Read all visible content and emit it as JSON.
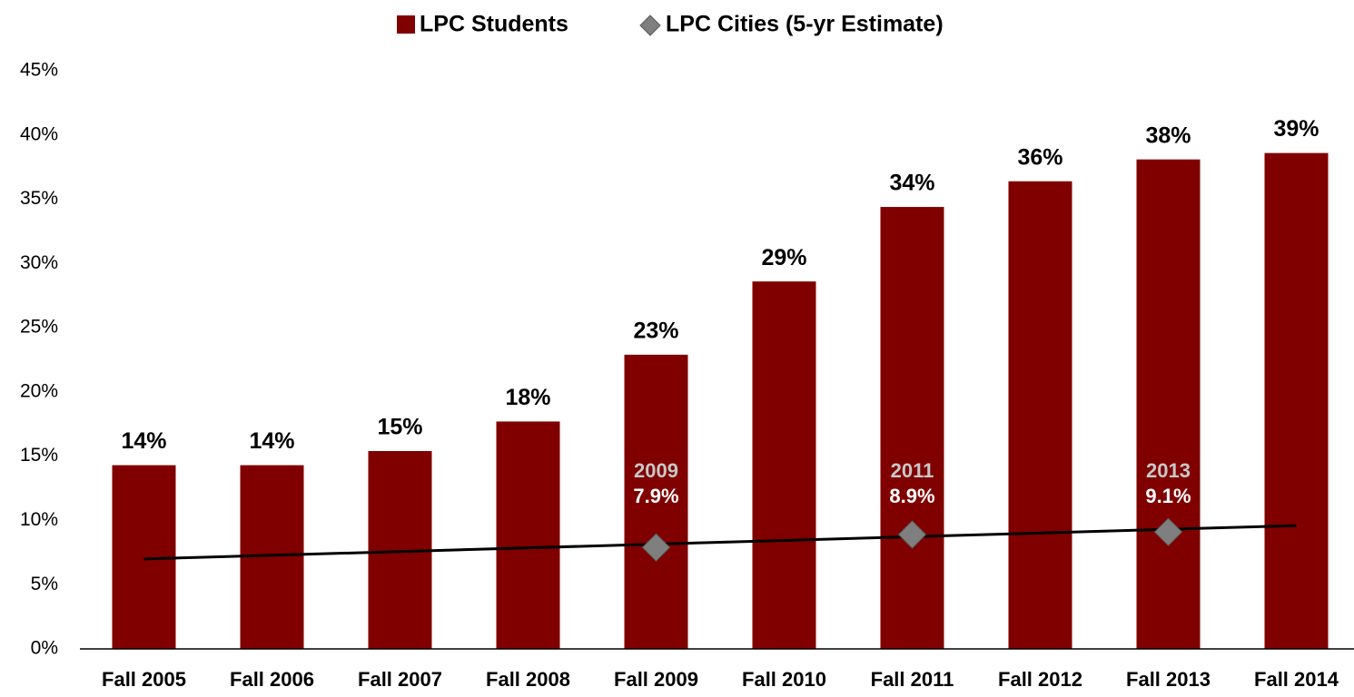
{
  "chart_data": {
    "type": "bar",
    "categories": [
      "Fall 2005",
      "Fall 2006",
      "Fall 2007",
      "Fall 2008",
      "Fall 2009",
      "Fall 2010",
      "Fall 2011",
      "Fall 2012",
      "Fall 2013",
      "Fall 2014"
    ],
    "series": [
      {
        "name": "LPC Students",
        "color": "#800000",
        "type": "bar",
        "values": [
          14.3,
          14.3,
          15.4,
          17.7,
          22.9,
          28.6,
          34.4,
          36.4,
          38.1,
          38.6
        ],
        "value_labels": [
          "14%",
          "14%",
          "15%",
          "18%",
          "23%",
          "29%",
          "34%",
          "36%",
          "38%",
          "39%"
        ]
      },
      {
        "name": "LPC Cities (5-yr Estimate)",
        "color": "#7f7f7f",
        "type": "scatter",
        "values": [
          null,
          null,
          null,
          null,
          7.9,
          null,
          8.9,
          null,
          9.1,
          null
        ],
        "value_labels": [
          null,
          null,
          null,
          null,
          "7.9%",
          null,
          "8.9%",
          null,
          "9.1%",
          null
        ],
        "year_labels": [
          null,
          null,
          null,
          null,
          "2009",
          null,
          "2011",
          null,
          "2013",
          null
        ]
      }
    ],
    "trendline": {
      "color": "#000000",
      "values": [
        7.0,
        9.6
      ]
    },
    "ylim": [
      0,
      45
    ],
    "yticks": [
      {
        "value": 0,
        "label": "0%"
      },
      {
        "value": 5,
        "label": "5%"
      },
      {
        "value": 10,
        "label": "10%"
      },
      {
        "value": 15,
        "label": "15%"
      },
      {
        "value": 20,
        "label": "20%"
      },
      {
        "value": 25,
        "label": "25%"
      },
      {
        "value": 30,
        "label": "30%"
      },
      {
        "value": 35,
        "label": "35%"
      },
      {
        "value": 40,
        "label": "40%"
      },
      {
        "value": 45,
        "label": "45%"
      }
    ],
    "grid": false,
    "legend": "top"
  }
}
